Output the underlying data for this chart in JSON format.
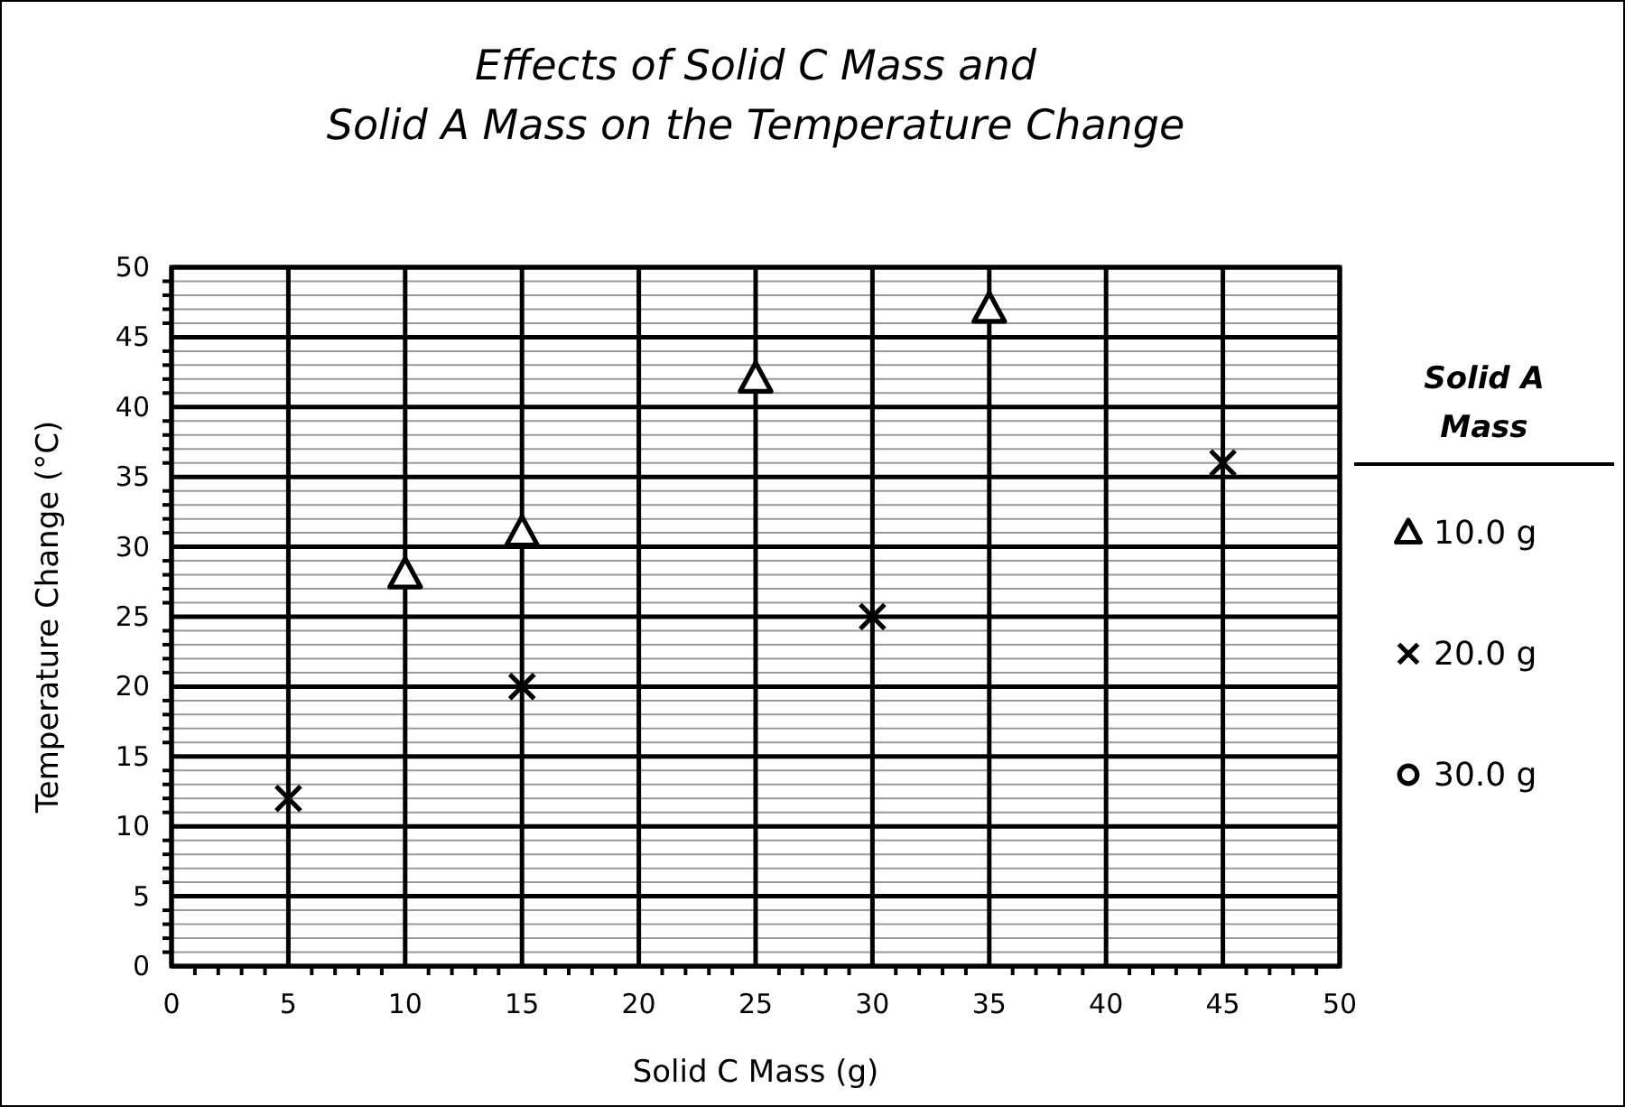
{
  "chart_data": {
    "type": "scatter",
    "title": "Effects of Solid C Mass and\nSolid A Mass on the Temperature Change",
    "xlabel": "Solid C Mass (g)",
    "ylabel": "Temperature Change (°C)",
    "legend_title": "Solid A Mass",
    "legend": "right",
    "grid": true,
    "xlim": [
      0,
      50
    ],
    "xticks": [
      0,
      5,
      10,
      15,
      20,
      25,
      30,
      35,
      40,
      45,
      50
    ],
    "ylim": [
      0,
      50
    ],
    "yticks": [
      0,
      5,
      10,
      15,
      20,
      25,
      30,
      35,
      40,
      45,
      50
    ],
    "series": [
      {
        "name": "10.0 g",
        "color": "#000000",
        "marker": "triangle",
        "x": [
          10,
          15,
          25,
          35
        ],
        "values": [
          28,
          31,
          42,
          47
        ]
      },
      {
        "name": "20.0 g",
        "color": "#000000",
        "marker": "cross",
        "x": [
          5,
          15,
          30,
          45
        ],
        "values": [
          12,
          20,
          25,
          36
        ]
      },
      {
        "name": "30.0 g",
        "color": "#000000",
        "marker": "circle"
      }
    ]
  }
}
